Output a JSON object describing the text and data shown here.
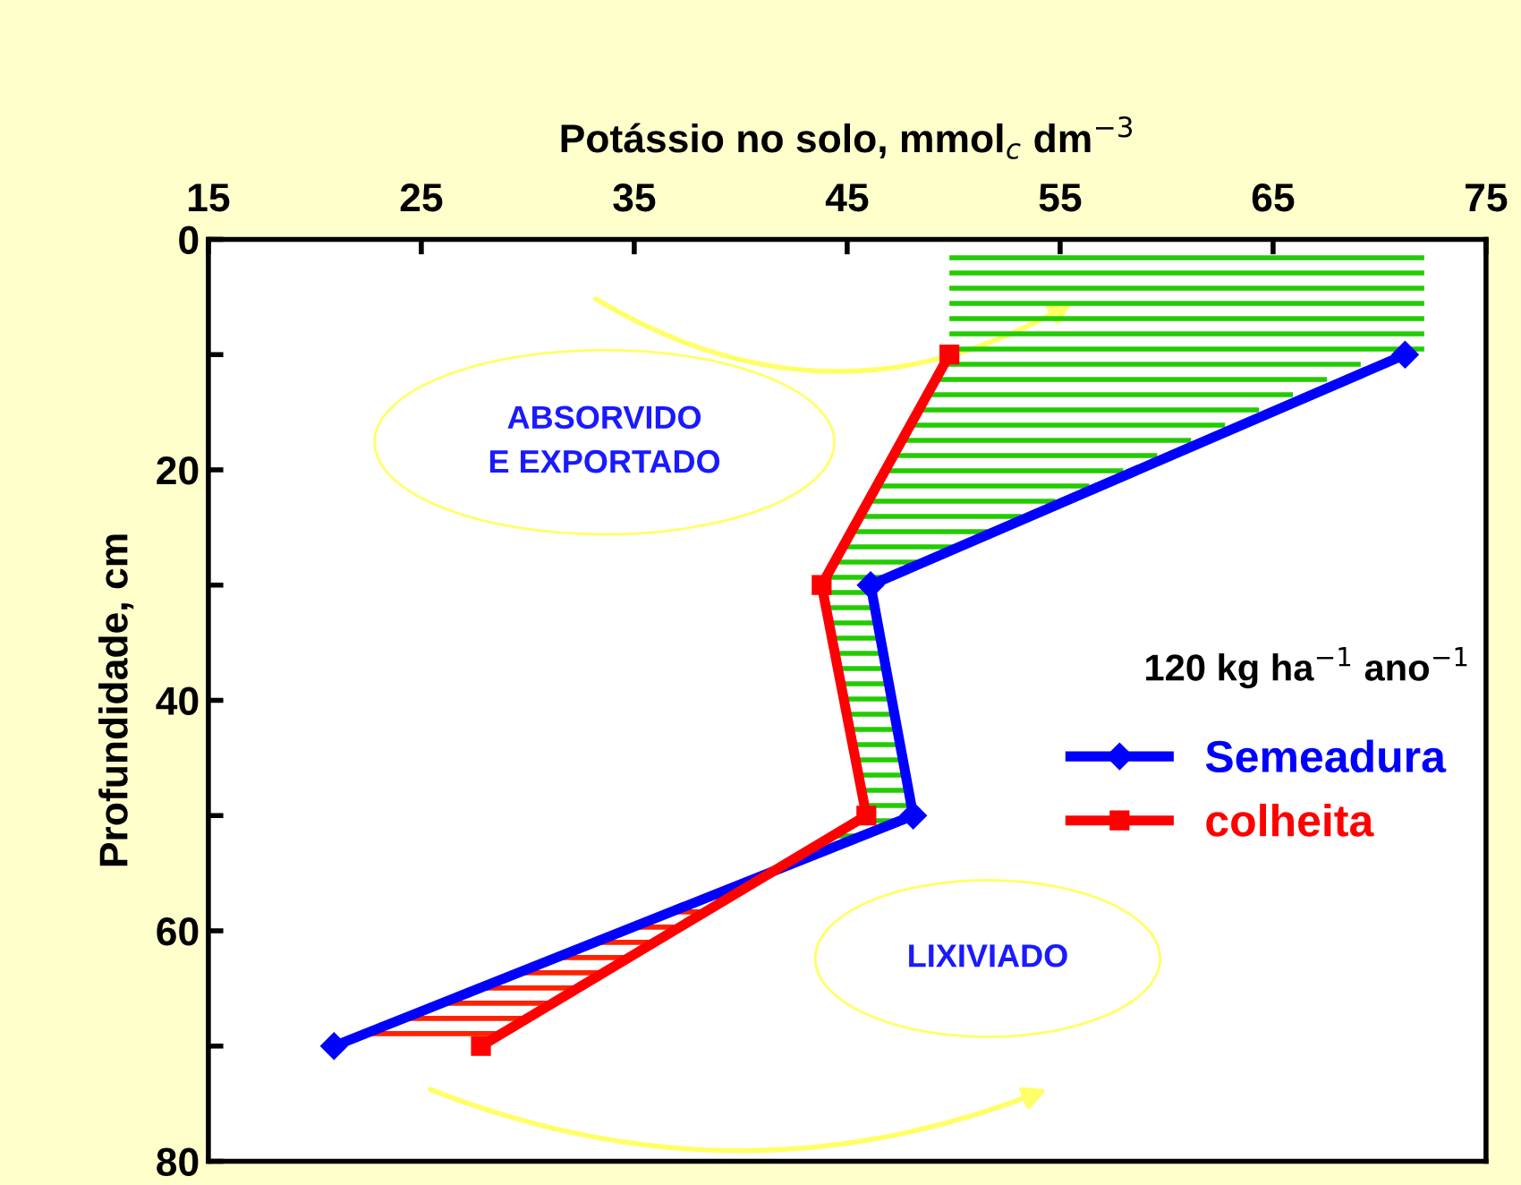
{
  "chart_data": {
    "type": "line",
    "xlabel": "Potássio no solo, mmol$_{c}$ dm$^{−3}$",
    "ylabel": "Profundidade, cm",
    "xlim": [
      15,
      75
    ],
    "xticks": [
      15,
      25,
      35,
      45,
      55,
      65,
      75
    ],
    "ylim": [
      80,
      0
    ],
    "yticks": [
      0,
      {
        "value": 10,
        "label": null
      },
      20,
      {
        "value": 30,
        "label": null
      },
      40,
      {
        "value": 50,
        "label": null
      },
      60,
      {
        "value": 70,
        "label": null
      },
      80
    ],
    "series": [
      {
        "name": "Semeadura",
        "color": "#0000ff",
        "marker": "diamond",
        "x": [
          71.2,
          46.1,
          48.1,
          20.9
        ],
        "values": [
          10,
          30,
          50,
          70
        ]
      },
      {
        "name": "colheita",
        "color": "#ff0000",
        "marker": "square",
        "x": [
          49.8,
          43.8,
          45.9,
          27.8
        ],
        "values": [
          10,
          30,
          50,
          70
        ]
      }
    ],
    "annotations": [
      "ABSORVIDO\nE EXPORTADO",
      "LIXIVIADO",
      "120 kg ha$^{−1}$ ano$^{−1}$"
    ],
    "legend": "right",
    "grid": false,
    "line_style": "solid"
  }
}
